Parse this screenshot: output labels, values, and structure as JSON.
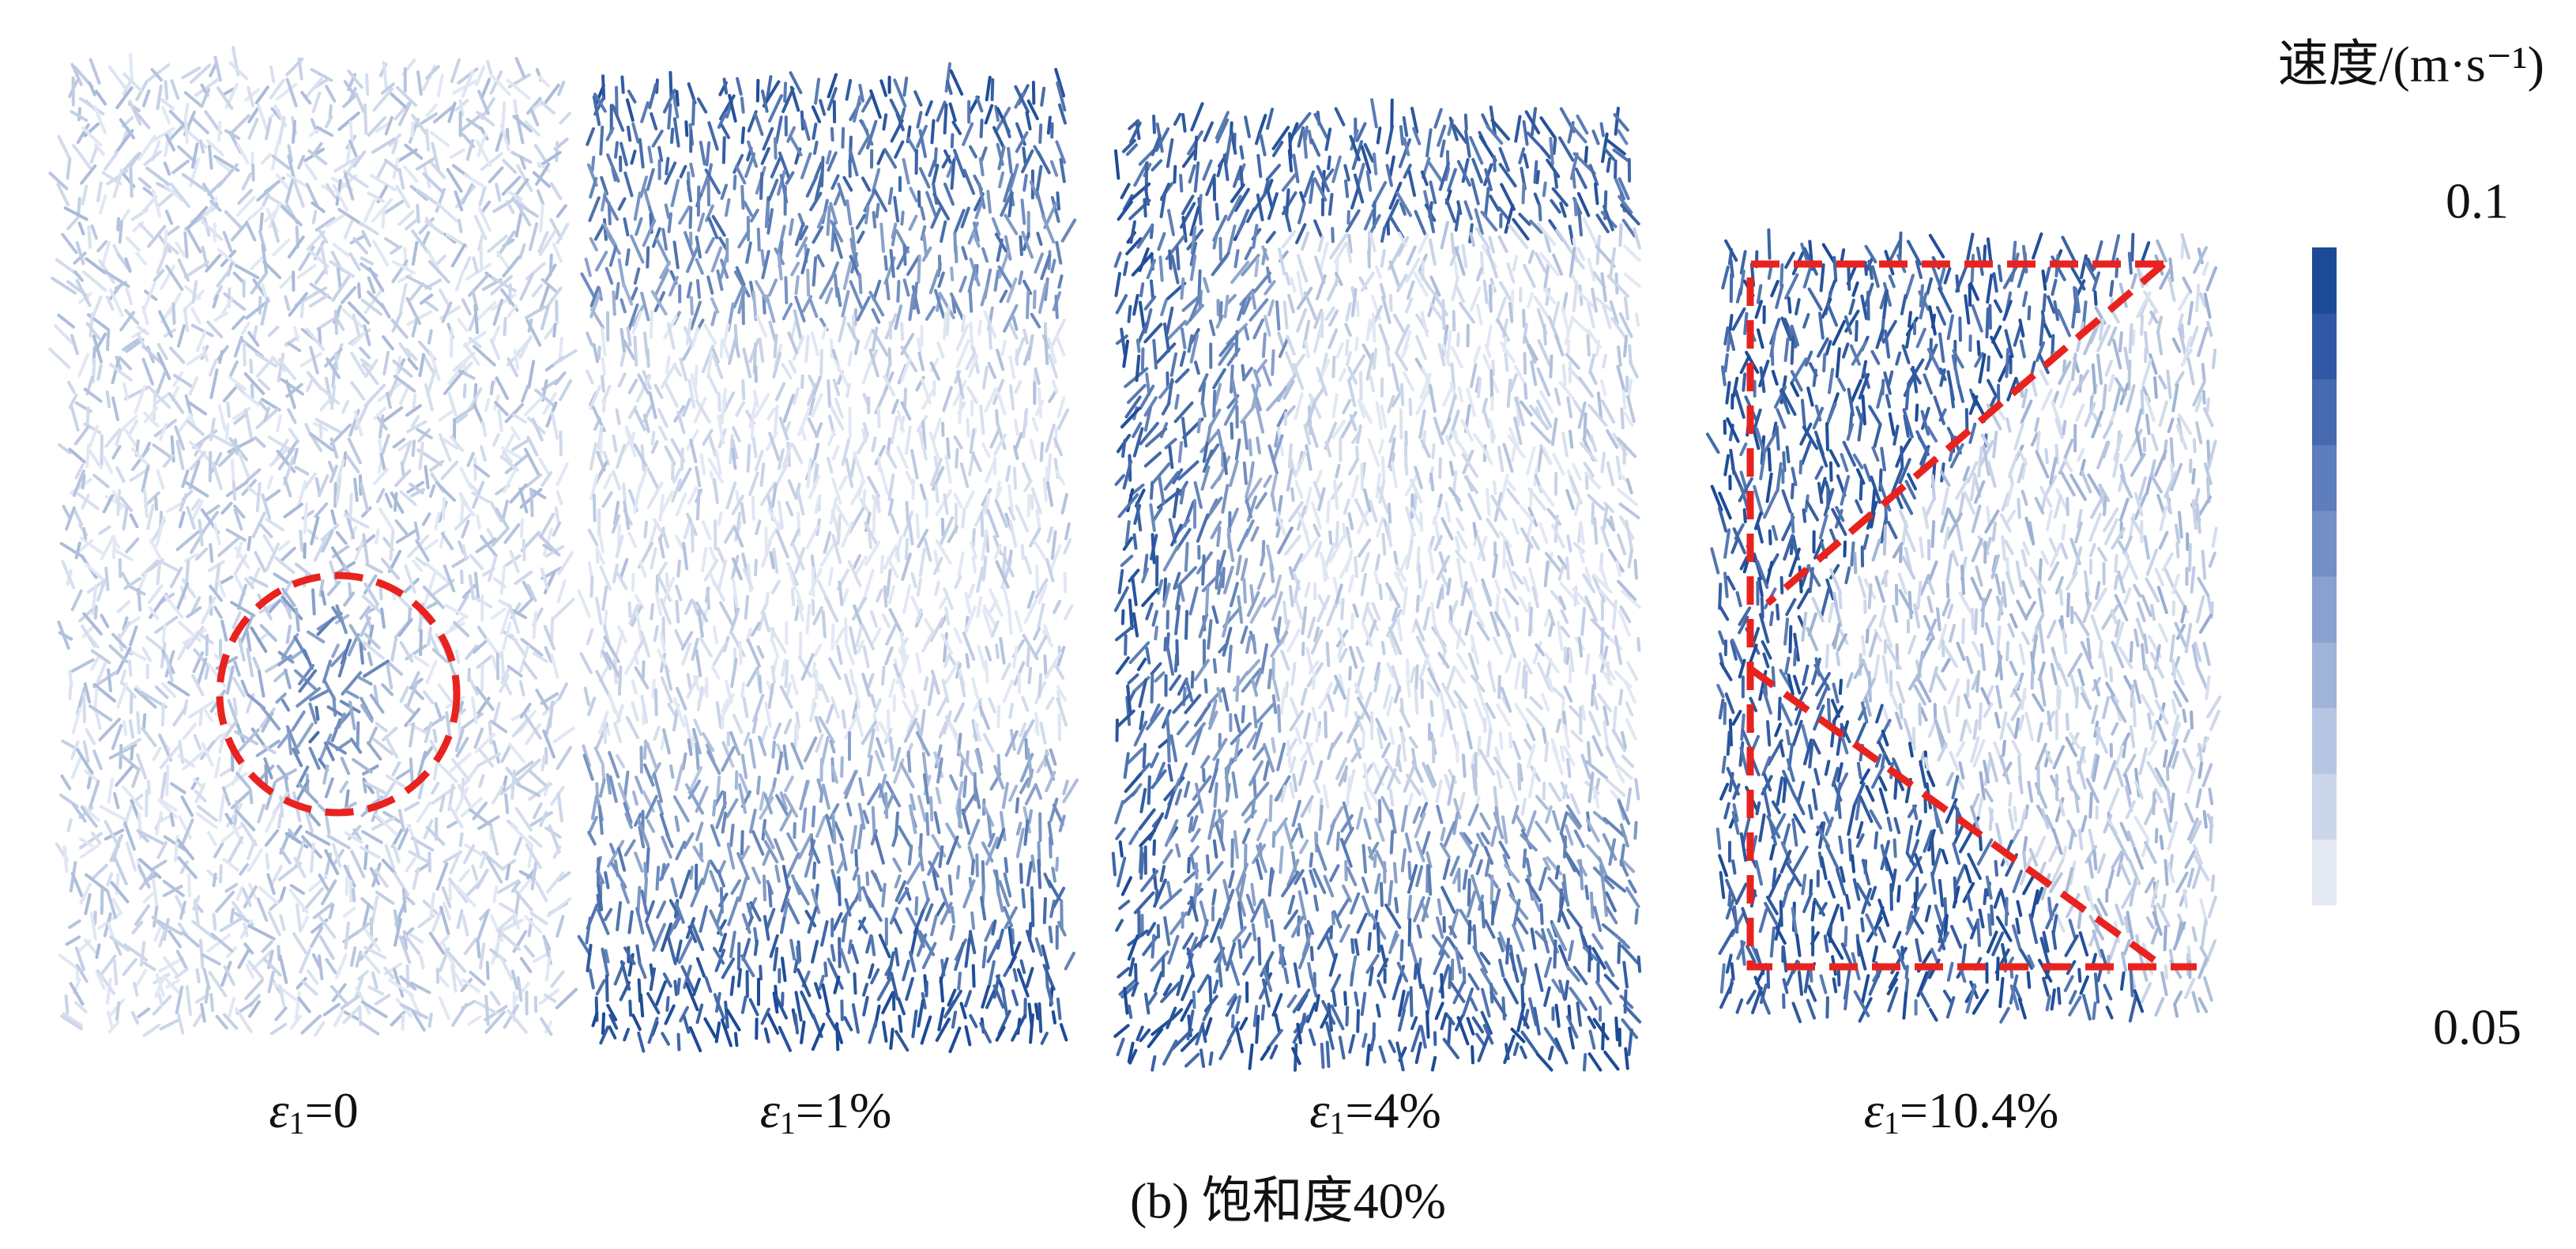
{
  "figure": {
    "panels": [
      {
        "symbol": "ε",
        "subscript": "1",
        "label": "=0"
      },
      {
        "symbol": "ε",
        "subscript": "1",
        "label": "=1%"
      },
      {
        "symbol": "ε",
        "subscript": "1",
        "label": "=4%"
      },
      {
        "symbol": "ε",
        "subscript": "1",
        "label": "=10.4%"
      }
    ],
    "caption": "(b) 饱和度40%",
    "colorbar": {
      "title": "速度/(m·s⁻¹)",
      "range": [
        0.05,
        0.1
      ],
      "ticks": [
        0.1,
        0.05
      ],
      "colors": [
        "#e4e9f3",
        "#ccd6ea",
        "#b6c5e1",
        "#a0b3d8",
        "#8aa1cf",
        "#738fc5",
        "#5d7dbc",
        "#4669b0",
        "#3058a5",
        "#1c4a96"
      ]
    }
  }
}
